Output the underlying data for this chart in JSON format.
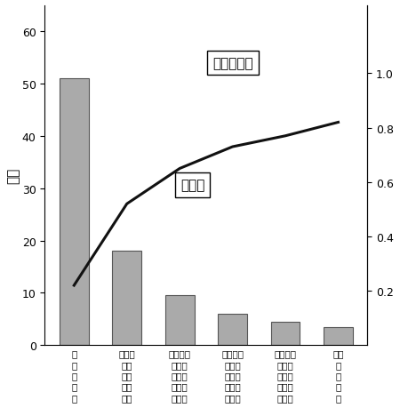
{
  "categories": [
    "１\n万\n人\n未\n満",
    "５　１\n万万\n人人\n未以\n満上",
    "１０　５\n万　万\n人　人\n未　以\n満　上",
    "２０１０\n万　万\n人　人\n未　以\n満　上",
    "３０２０\n万　万\n人　人\n未　以\n満　上",
    "３０\n万\n人\n以\n上"
  ],
  "bar_values": [
    51.0,
    18.0,
    9.5,
    6.0,
    4.5,
    3.5
  ],
  "bar_color": "#aaaaaa",
  "line_values": [
    0.22,
    0.52,
    0.65,
    0.73,
    0.77,
    0.82
  ],
  "line_color": "#111111",
  "left_ylabel": "万円",
  "left_ylim": [
    0,
    65
  ],
  "left_yticks": [
    0,
    10,
    20,
    30,
    40,
    50,
    60
  ],
  "right_ylim": [
    0,
    1.25
  ],
  "right_yticks": [
    0.2,
    0.4,
    0.6,
    0.8,
    1.0
  ],
  "bar_label": "交付税",
  "line_label": "財政力指数",
  "background_color": "#ffffff"
}
